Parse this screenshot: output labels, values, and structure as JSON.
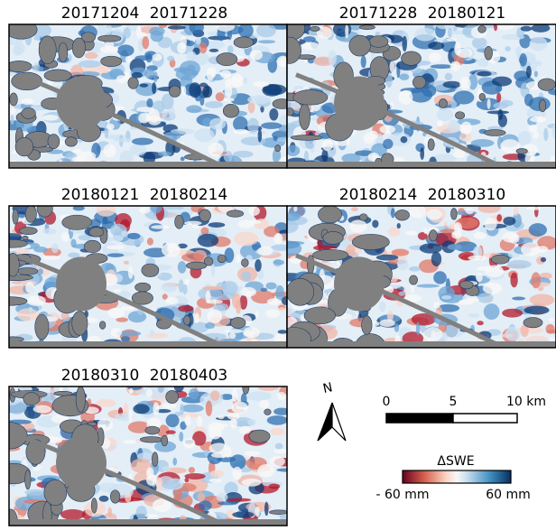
{
  "panels": [
    {
      "title": "20171204 20171228"
    },
    {
      "title": "20171228 20180121"
    },
    {
      "title": "20180121 20180214"
    },
    {
      "title": "20180214 20180310"
    },
    {
      "title": "20180310 20180403"
    }
  ],
  "north_arrow": {
    "label": "N"
  },
  "scale_bar": {
    "labels": [
      "0",
      "5",
      "10 km"
    ]
  },
  "colorbar": {
    "title": "ΔSWE",
    "min_label": "- 60 mm",
    "max_label": "60 mm"
  }
}
